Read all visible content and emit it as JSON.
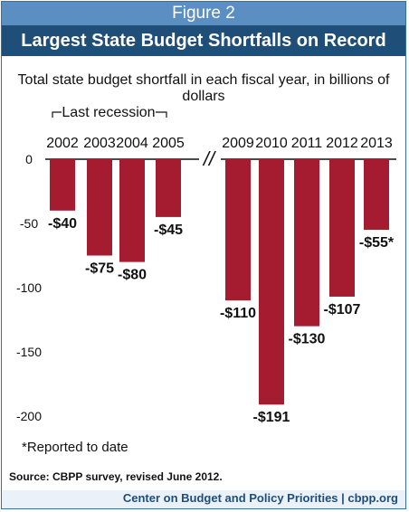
{
  "header": {
    "figure_label": "Figure 2",
    "title": "Largest State Budget Shortfalls on Record"
  },
  "chart_data": {
    "type": "bar",
    "subtitle": "Total state budget shortfall in each fiscal year, in billions of dollars",
    "group_label": "Last recession",
    "categories": [
      "2002",
      "2003",
      "2004",
      "2005",
      "2009",
      "2010",
      "2011",
      "2012",
      "2013"
    ],
    "values": [
      -40,
      -75,
      -80,
      -45,
      -110,
      -191,
      -130,
      -107,
      -55
    ],
    "data_labels": [
      "-$40",
      "-$75",
      "-$80",
      "-$45",
      "-$110",
      "-$191",
      "-$130",
      "-$107",
      "-$55*"
    ],
    "y_ticks": [
      0,
      -50,
      -100,
      -150,
      -200
    ],
    "y_tick_labels": [
      "0",
      "-50",
      "-100",
      "-150",
      "-200"
    ],
    "ylim": [
      -200,
      0
    ],
    "axis_break": "//",
    "bar_color": "#a51c30",
    "grid": false
  },
  "footnote": "*Reported to date",
  "source": "Source: CBPP survey, revised June 2012.",
  "credit": "Center on Budget and Policy Priorities | cbpp.org"
}
